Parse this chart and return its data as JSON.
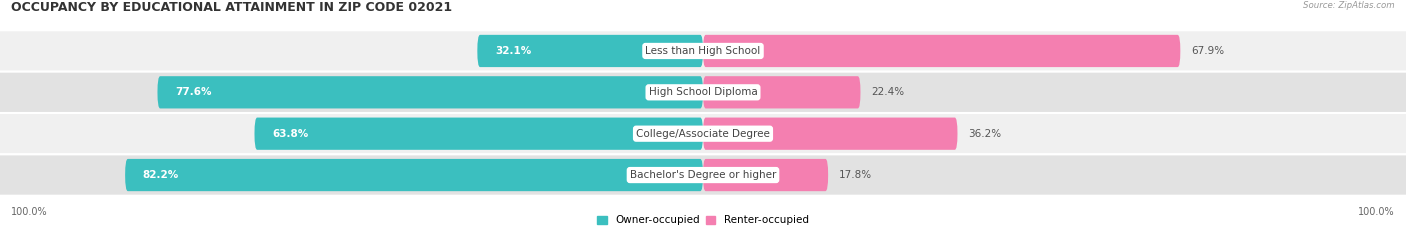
{
  "title": "OCCUPANCY BY EDUCATIONAL ATTAINMENT IN ZIP CODE 02021",
  "source": "Source: ZipAtlas.com",
  "categories": [
    "Less than High School",
    "High School Diploma",
    "College/Associate Degree",
    "Bachelor's Degree or higher"
  ],
  "owner_pct": [
    32.1,
    77.6,
    63.8,
    82.2
  ],
  "renter_pct": [
    67.9,
    22.4,
    36.2,
    17.8
  ],
  "owner_color": "#3BBFBF",
  "renter_color": "#F47FB0",
  "row_bg_light": "#F0F0F0",
  "row_bg_dark": "#E2E2E2",
  "title_fontsize": 9,
  "cat_fontsize": 7.5,
  "pct_fontsize": 7.5,
  "tick_fontsize": 7,
  "fig_bg_color": "#FFFFFF",
  "axis_label_left": "100.0%",
  "axis_label_right": "100.0%",
  "legend_label_owner": "Owner-occupied",
  "legend_label_renter": "Renter-occupied"
}
